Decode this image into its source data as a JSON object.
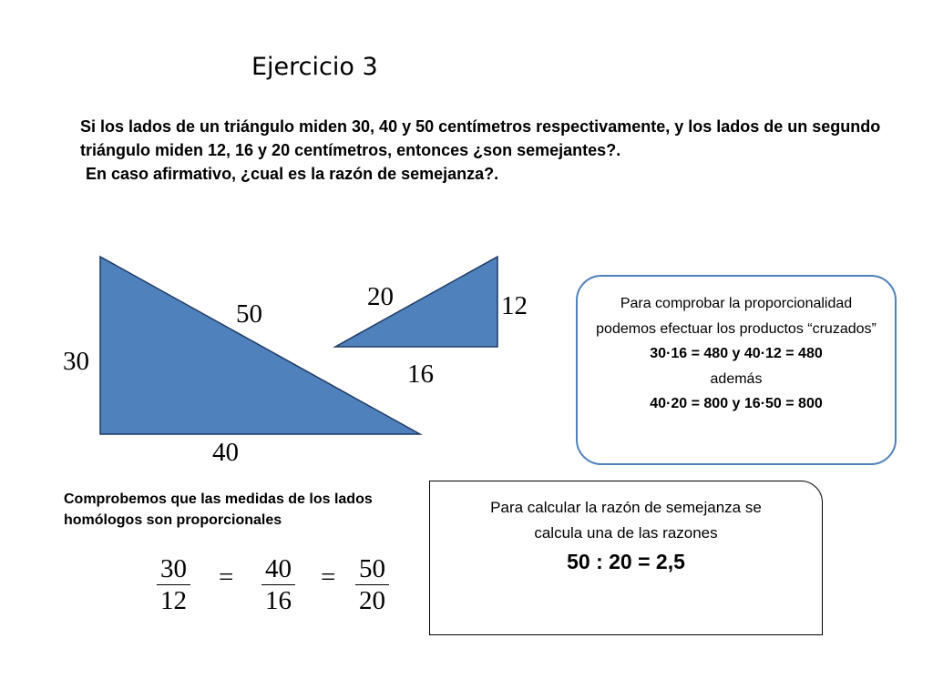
{
  "title": "Ejercicio 3",
  "problem": {
    "line1": "Si los lados de un triángulo miden 30, 40 y 50 centímetros respectivamente, y los lados de un segundo triángulo miden 12, 16 y 20 centímetros, entonces ¿son semejantes?.",
    "line2": "En caso afirmativo, ¿cual es la razón de semejanza?."
  },
  "triangle_large": {
    "hypotenuse": "50",
    "height": "30",
    "base": "40",
    "fill": "#4f81bd",
    "stroke": "#1f3b63"
  },
  "triangle_small": {
    "hypotenuse": "20",
    "height": "12",
    "base": "16",
    "fill": "#4f81bd",
    "stroke": "#1f3b63"
  },
  "products_box": {
    "intro": "Para comprobar la proporcionalidad podemos efectuar los productos “cruzados”",
    "eq1": "30·16 = 480  y   40·12 = 480",
    "connector": "además",
    "eq2": "40·20 = 800  y  16·50 = 800",
    "border_color": "#4f81bd"
  },
  "check": {
    "text": "Comprobemos  que las medidas de los lados homólogos son proporcionales",
    "fractions": [
      {
        "num": "30",
        "den": "12"
      },
      {
        "num": "40",
        "den": "16"
      },
      {
        "num": "50",
        "den": "20"
      }
    ],
    "equals": "="
  },
  "ratio_box": {
    "intro": "Para calcular la razón de semejanza se calcula una de las razones",
    "result": "50 : 20 = 2,5"
  }
}
